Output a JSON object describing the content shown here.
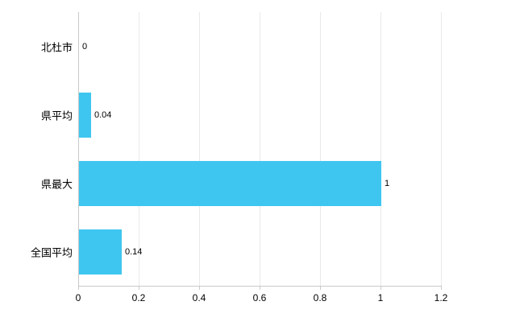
{
  "chart_data": {
    "type": "bar",
    "orientation": "horizontal",
    "title": "",
    "categories": [
      "北杜市",
      "県平均",
      "県最大",
      "全国平均"
    ],
    "values": [
      0,
      0.04,
      1,
      0.14
    ],
    "value_labels": [
      "0",
      "0.04",
      "1",
      "0.14"
    ],
    "xlim": [
      0,
      1.2
    ],
    "xticks": [
      0,
      0.2,
      0.4,
      0.6,
      0.8,
      1,
      1.2
    ],
    "xtick_labels": [
      "0",
      "0.2",
      "0.4",
      "0.6",
      "0.8",
      "1",
      "1.2"
    ],
    "bar_color": "#3fc6f0",
    "grid": true,
    "gridline_color": "#e9e9e9",
    "axis_color": "#c9c9c9",
    "legend": "none"
  }
}
